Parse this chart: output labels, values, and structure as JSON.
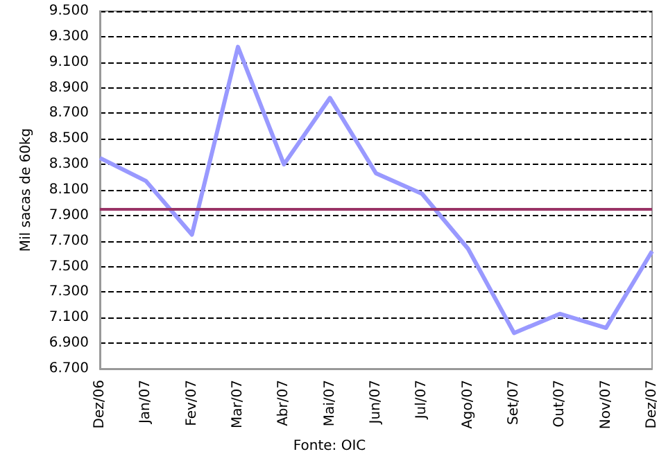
{
  "chart_data": {
    "type": "line",
    "ylabel": "Mil sacas de 60kg",
    "categories": [
      "Dez/06",
      "Jan/07",
      "Fev/07",
      "Mar/07",
      "Abr/07",
      "Mai/07",
      "Jun/07",
      "Jul/07",
      "Ago/07",
      "Set/07",
      "Out/07",
      "Nov/07",
      "Dez/07"
    ],
    "series": [
      {
        "color": "#9999ff",
        "values": [
          8350,
          8170,
          7750,
          9220,
          8300,
          8820,
          8230,
          8070,
          7640,
          6980,
          7130,
          7020,
          7620
        ]
      }
    ],
    "ylim": [
      6700,
      9500
    ],
    "yticks": [
      {
        "value": 6700,
        "label": "6.700"
      },
      {
        "value": 6900,
        "label": "6.900"
      },
      {
        "value": 7100,
        "label": "7.100"
      },
      {
        "value": 7300,
        "label": "7.300"
      },
      {
        "value": 7500,
        "label": "7.500"
      },
      {
        "value": 7700,
        "label": "7.700"
      },
      {
        "value": 7900,
        "label": "7.900"
      },
      {
        "value": 8100,
        "label": "8.100"
      },
      {
        "value": 8300,
        "label": "8.300"
      },
      {
        "value": 8500,
        "label": "8.500"
      },
      {
        "value": 8700,
        "label": "8.700"
      },
      {
        "value": 8900,
        "label": "8.900"
      },
      {
        "value": 9100,
        "label": "9.100"
      },
      {
        "value": 9300,
        "label": "9.300"
      },
      {
        "value": 9500,
        "label": "9.500"
      }
    ],
    "ref_lines": [
      {
        "axis": "y",
        "value": 7950,
        "color": "#993366"
      }
    ],
    "grid": "y",
    "marker": "none",
    "line_style": "solid",
    "annotations": [
      "Fonte: OIC"
    ]
  }
}
